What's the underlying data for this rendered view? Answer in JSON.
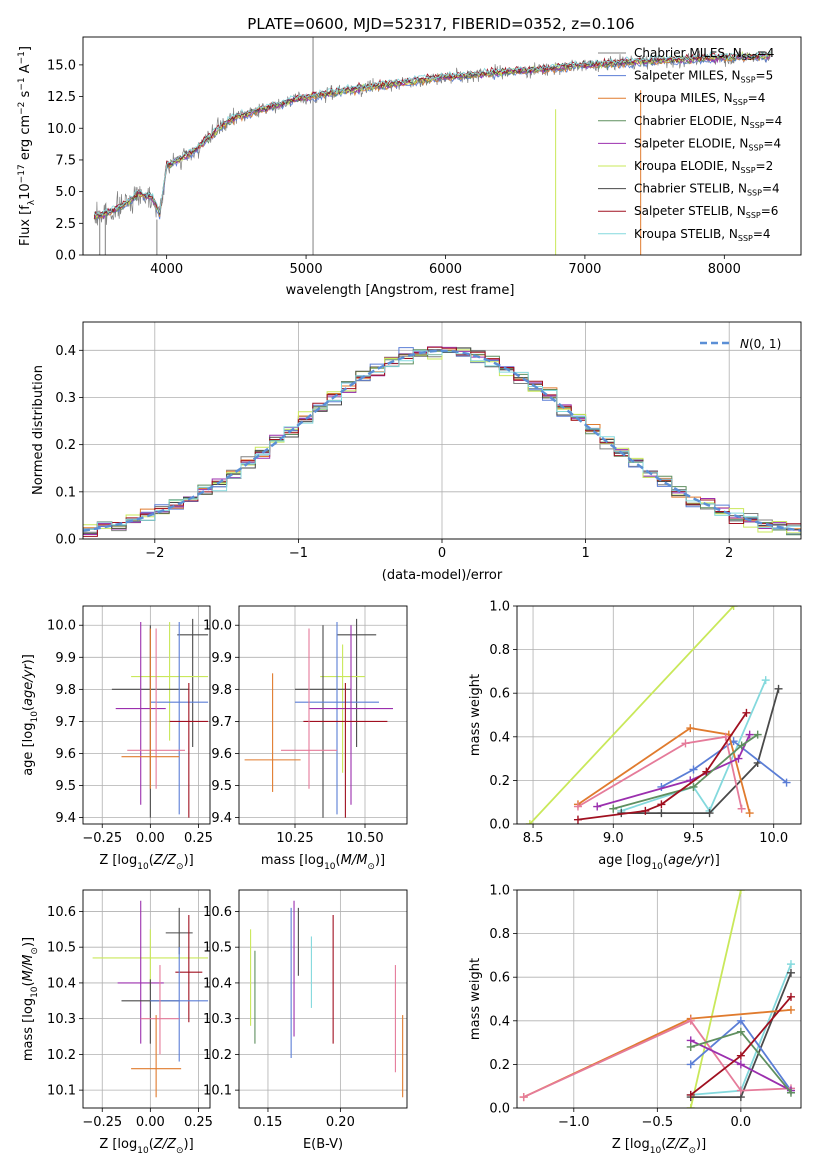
{
  "figure": {
    "title": "PLATE=0600, MJD=52317, FIBERID=0352, z=0.106"
  },
  "colors": [
    "#808080",
    "#5b7ed6",
    "#e07b2e",
    "#5f8f5f",
    "#9b2fae",
    "#c9e85a",
    "#4a4a4a",
    "#a01020",
    "#84d9dd"
  ],
  "chart_data": [
    {
      "id": "spectrum",
      "type": "line",
      "title": "PLATE=0600, MJD=52317, FIBERID=0352, z=0.106",
      "xlabel": "wavelength [Angstrom, rest frame]",
      "ylabel": "Flux [f_λ 10^-17 erg cm^-2 s^-1 A^-1]",
      "xlim": [
        3400,
        8550
      ],
      "ylim": [
        0,
        17.2
      ],
      "xticks": [
        4000,
        5000,
        6000,
        7000,
        8000
      ],
      "yticks": [
        0.0,
        2.5,
        5.0,
        7.5,
        10.0,
        12.5,
        15.0
      ],
      "grid": false,
      "legend": "top-right",
      "data_envelope": {
        "x": [
          3480,
          3600,
          3700,
          3800,
          3900,
          3950,
          4000,
          4100,
          4200,
          4300,
          4400,
          4500,
          4700,
          4900,
          5100,
          5300,
          5500,
          5700,
          5900,
          6100,
          6300,
          6500,
          6700,
          6900,
          7100,
          7300,
          7500,
          7700,
          7900,
          8100,
          8300
        ],
        "y": [
          3.0,
          3.4,
          4.0,
          4.8,
          4.5,
          3.2,
          7.0,
          7.6,
          8.2,
          9.2,
          10.2,
          10.9,
          11.5,
          12.2,
          12.6,
          13.0,
          13.3,
          13.6,
          13.9,
          14.1,
          14.3,
          14.5,
          14.6,
          14.9,
          15.0,
          15.2,
          15.3,
          15.4,
          15.5,
          15.6,
          15.7
        ]
      },
      "series": [
        {
          "name": "Chabrier MILES, N_SSP=4",
          "color": "#808080"
        },
        {
          "name": "Salpeter MILES, N_SSP=5",
          "color": "#5b7ed6"
        },
        {
          "name": "Kroupa MILES, N_SSP=4",
          "color": "#e07b2e"
        },
        {
          "name": "Chabrier ELODIE, N_SSP=4",
          "color": "#5f8f5f"
        },
        {
          "name": "Salpeter ELODIE, N_SSP=4",
          "color": "#9b2fae"
        },
        {
          "name": "Kroupa ELODIE, N_SSP=2",
          "color": "#c9e85a"
        },
        {
          "name": "Chabrier STELIB, N_SSP=4",
          "color": "#4a4a4a"
        },
        {
          "name": "Salpeter STELIB, N_SSP=6",
          "color": "#a01020"
        },
        {
          "name": "Kroupa STELIB, N_SSP=4",
          "color": "#84d9dd"
        }
      ]
    },
    {
      "id": "residuals",
      "type": "line",
      "xlabel": "(data-model)/error",
      "ylabel": "Normed distribution",
      "xlim": [
        -2.5,
        2.5
      ],
      "ylim": [
        0,
        0.46
      ],
      "xticks": [
        -2,
        -1,
        0,
        1,
        2
      ],
      "yticks": [
        0.0,
        0.1,
        0.2,
        0.3,
        0.4
      ],
      "grid": true,
      "legend": "top-right",
      "reference": {
        "name": "N(0,1)",
        "color": "#5b8fd6"
      }
    },
    {
      "id": "age_vs_Z",
      "type": "scatter",
      "xlabel": "Z [log10(Z/Z☉)]",
      "ylabel": "age [log10(age/yr)]",
      "xlim": [
        -0.35,
        0.31
      ],
      "ylim": [
        9.38,
        10.06
      ],
      "xticks": [
        -0.25,
        0.0,
        0.25
      ],
      "xtick_labels": [
        "−0.25",
        "0.00",
        "0.25"
      ],
      "yticks": [
        9.4,
        9.5,
        9.6,
        9.7,
        9.8,
        9.9,
        10.0
      ],
      "grid": true,
      "points": [
        {
          "x": 0.22,
          "y": 9.97,
          "xerr": 0.08,
          "yerr_lo": 0.35,
          "yerr_hi": 0.05,
          "color": "#4a4a4a"
        },
        {
          "x": 0.1,
          "y": 9.84,
          "xerr": 0.2,
          "yerr_lo": 0.2,
          "yerr_hi": 0.17,
          "color": "#c9e85a"
        },
        {
          "x": 0.0,
          "y": 9.8,
          "xerr": 0.2,
          "yerr_lo": 0.4,
          "yerr_hi": 0.2,
          "color": "#4a4a4a"
        },
        {
          "x": 0.15,
          "y": 9.76,
          "xerr": 0.15,
          "yerr_lo": 0.35,
          "yerr_hi": 0.25,
          "color": "#5b7ed6"
        },
        {
          "x": -0.05,
          "y": 9.74,
          "xerr": 0.13,
          "yerr_lo": 0.3,
          "yerr_hi": 0.27,
          "color": "#9b2fae"
        },
        {
          "x": 0.2,
          "y": 9.7,
          "xerr": 0.1,
          "yerr_lo": 0.3,
          "yerr_hi": 0.12,
          "color": "#a01020"
        },
        {
          "x": 0.03,
          "y": 9.61,
          "xerr": 0.15,
          "yerr_lo": 0.12,
          "yerr_hi": 0.38,
          "color": "#e57b9a"
        },
        {
          "x": 0.0,
          "y": 9.59,
          "xerr": 0.15,
          "yerr_lo": 0.1,
          "yerr_hi": 0.4,
          "color": "#e07b2e"
        }
      ]
    },
    {
      "id": "age_vs_mass",
      "type": "scatter",
      "xlabel": "mass [log10(M/M☉)]",
      "xlim": [
        10.05,
        10.65
      ],
      "ylim": [
        9.38,
        10.06
      ],
      "xticks": [
        10.25,
        10.5
      ],
      "xtick_labels": [
        "10.25",
        "10.50"
      ],
      "yticks": [
        9.4,
        9.5,
        9.6,
        9.7,
        9.8,
        9.9,
        10.0
      ],
      "grid": true,
      "points": [
        {
          "x": 10.47,
          "y": 9.97,
          "xerr": 0.07,
          "yerr_lo": 0.35,
          "yerr_hi": 0.05,
          "color": "#4a4a4a"
        },
        {
          "x": 10.42,
          "y": 9.84,
          "xerr": 0.08,
          "yerr_lo": 0.3,
          "yerr_hi": 0.1,
          "color": "#c9e85a"
        },
        {
          "x": 10.35,
          "y": 9.8,
          "xerr": 0.1,
          "yerr_lo": 0.4,
          "yerr_hi": 0.2,
          "color": "#4a4a4a"
        },
        {
          "x": 10.4,
          "y": 9.76,
          "xerr": 0.15,
          "yerr_lo": 0.35,
          "yerr_hi": 0.25,
          "color": "#5b7ed6"
        },
        {
          "x": 10.45,
          "y": 9.74,
          "xerr": 0.15,
          "yerr_lo": 0.3,
          "yerr_hi": 0.26,
          "color": "#9b2fae"
        },
        {
          "x": 10.43,
          "y": 9.7,
          "xerr": 0.15,
          "yerr_lo": 0.3,
          "yerr_hi": 0.12,
          "color": "#a01020"
        },
        {
          "x": 10.3,
          "y": 9.61,
          "xerr": 0.1,
          "yerr_lo": 0.12,
          "yerr_hi": 0.38,
          "color": "#e57b9a"
        },
        {
          "x": 10.17,
          "y": 9.58,
          "xerr": 0.1,
          "yerr_lo": 0.1,
          "yerr_hi": 0.27,
          "color": "#e07b2e"
        }
      ]
    },
    {
      "id": "weight_vs_age",
      "type": "line",
      "xlabel": "age [log10(age/yr)]",
      "ylabel": "mass weight",
      "xlim": [
        8.4,
        10.17
      ],
      "ylim": [
        0,
        1.0
      ],
      "xticks": [
        8.5,
        9.0,
        9.5,
        10.0
      ],
      "yticks": [
        0.0,
        0.2,
        0.4,
        0.6,
        0.8,
        1.0
      ],
      "grid": true,
      "series": [
        {
          "color": "#c9e85a",
          "x": [
            8.48,
            9.75
          ],
          "y": [
            0.0,
            1.0
          ]
        },
        {
          "color": "#84d9dd",
          "x": [
            9.05,
            9.5,
            9.6,
            9.95
          ],
          "y": [
            0.06,
            0.17,
            0.06,
            0.66
          ]
        },
        {
          "color": "#4a4a4a",
          "x": [
            9.05,
            9.3,
            9.6,
            9.9,
            10.03
          ],
          "y": [
            0.05,
            0.05,
            0.05,
            0.28,
            0.62
          ]
        },
        {
          "color": "#5b7ed6",
          "x": [
            9.3,
            9.5,
            9.75,
            10.08
          ],
          "y": [
            0.17,
            0.25,
            0.38,
            0.19
          ]
        },
        {
          "color": "#e07b2e",
          "x": [
            8.78,
            9.48,
            9.72,
            9.85
          ],
          "y": [
            0.09,
            0.44,
            0.41,
            0.05
          ]
        },
        {
          "color": "#e57b9a",
          "x": [
            8.78,
            9.45,
            9.7,
            9.8
          ],
          "y": [
            0.08,
            0.37,
            0.4,
            0.07
          ]
        },
        {
          "color": "#9b2fae",
          "x": [
            8.9,
            9.48,
            9.78,
            9.85
          ],
          "y": [
            0.08,
            0.2,
            0.3,
            0.41
          ]
        },
        {
          "color": "#5f8f5f",
          "x": [
            9.0,
            9.5,
            9.8,
            9.9
          ],
          "y": [
            0.07,
            0.17,
            0.36,
            0.41
          ]
        },
        {
          "color": "#a01020",
          "x": [
            8.78,
            9.2,
            9.3,
            9.58,
            9.83
          ],
          "y": [
            0.02,
            0.06,
            0.09,
            0.24,
            0.51
          ]
        }
      ]
    },
    {
      "id": "mass_vs_Z",
      "type": "scatter",
      "xlabel": "Z [log10(Z/Z☉)]",
      "ylabel": "mass [log10(M/M☉)]",
      "xlim": [
        -0.35,
        0.31
      ],
      "ylim": [
        10.05,
        10.66
      ],
      "xticks": [
        -0.25,
        0.0,
        0.25
      ],
      "xtick_labels": [
        "−0.25",
        "0.00",
        "0.25"
      ],
      "yticks": [
        10.1,
        10.2,
        10.3,
        10.4,
        10.5,
        10.6
      ],
      "grid": true,
      "points": [
        {
          "x": 0.15,
          "y": 10.54,
          "xerr": 0.07,
          "yerr_lo": 0.06,
          "yerr_hi": 0.07,
          "color": "#4a4a4a"
        },
        {
          "x": 0.0,
          "y": 10.47,
          "xerr": 0.3,
          "yerr_lo": 0.09,
          "yerr_hi": 0.08,
          "color": "#c9e85a"
        },
        {
          "x": 0.2,
          "y": 10.43,
          "xerr": 0.07,
          "yerr_lo": 0.14,
          "yerr_hi": 0.16,
          "color": "#a01020"
        },
        {
          "x": -0.05,
          "y": 10.4,
          "xerr": 0.12,
          "yerr_lo": 0.17,
          "yerr_hi": 0.23,
          "color": "#9b2fae"
        },
        {
          "x": 0.0,
          "y": 10.35,
          "xerr": 0.15,
          "yerr_lo": 0.12,
          "yerr_hi": 0.06,
          "color": "#4a4a4a"
        },
        {
          "x": 0.15,
          "y": 10.35,
          "xerr": 0.15,
          "yerr_lo": 0.17,
          "yerr_hi": 0.15,
          "color": "#5b7ed6"
        },
        {
          "x": 0.05,
          "y": 10.3,
          "xerr": 0.1,
          "yerr_lo": 0.1,
          "yerr_hi": 0.15,
          "color": "#e57b9a"
        },
        {
          "x": 0.03,
          "y": 10.16,
          "xerr": 0.13,
          "yerr_lo": 0.08,
          "yerr_hi": 0.15,
          "color": "#e07b2e"
        }
      ]
    },
    {
      "id": "mass_vs_ebv",
      "type": "scatter",
      "xlabel": "E(B-V)",
      "xlim": [
        0.13,
        0.246
      ],
      "ylim": [
        10.05,
        10.66
      ],
      "xticks": [
        0.15,
        0.2
      ],
      "xtick_labels": [
        "0.15",
        "0.20"
      ],
      "yticks": [
        10.1,
        10.2,
        10.3,
        10.4,
        10.5,
        10.6
      ],
      "grid": true,
      "points": [
        {
          "x": 0.138,
          "y": 10.4,
          "yerr_lo": 0.12,
          "yerr_hi": 0.15,
          "color": "#c9e85a"
        },
        {
          "x": 0.141,
          "y": 10.36,
          "yerr_lo": 0.13,
          "yerr_hi": 0.13,
          "color": "#5f8f5f"
        },
        {
          "x": 0.166,
          "y": 10.4,
          "yerr_lo": 0.21,
          "yerr_hi": 0.21,
          "color": "#5b7ed6"
        },
        {
          "x": 0.168,
          "y": 10.44,
          "yerr_lo": 0.19,
          "yerr_hi": 0.19,
          "color": "#9b2fae"
        },
        {
          "x": 0.171,
          "y": 10.51,
          "yerr_lo": 0.09,
          "yerr_hi": 0.1,
          "color": "#4a4a4a"
        },
        {
          "x": 0.18,
          "y": 10.4,
          "yerr_lo": 0.07,
          "yerr_hi": 0.13,
          "color": "#84d9dd"
        },
        {
          "x": 0.195,
          "y": 10.41,
          "yerr_lo": 0.18,
          "yerr_hi": 0.18,
          "color": "#a01020"
        },
        {
          "x": 0.238,
          "y": 10.3,
          "yerr_lo": 0.15,
          "yerr_hi": 0.15,
          "color": "#e57b9a"
        },
        {
          "x": 0.243,
          "y": 10.2,
          "yerr_lo": 0.12,
          "yerr_hi": 0.11,
          "color": "#e07b2e"
        }
      ]
    },
    {
      "id": "weight_vs_Z",
      "type": "line",
      "xlabel": "Z [log10(Z/Z☉)]",
      "ylabel": "mass weight",
      "xlim": [
        -1.34,
        0.36
      ],
      "ylim": [
        0,
        1.0
      ],
      "xticks": [
        -1.0,
        -0.5,
        0.0
      ],
      "xtick_labels": [
        "−1.0",
        "−0.5",
        "0.0"
      ],
      "yticks": [
        0.0,
        0.2,
        0.4,
        0.6,
        0.8,
        1.0
      ],
      "grid": true,
      "series": [
        {
          "color": "#c9e85a",
          "x": [
            -0.3,
            0.0
          ],
          "y": [
            0.0,
            1.0
          ]
        },
        {
          "color": "#84d9dd",
          "x": [
            -0.3,
            0.0,
            0.3
          ],
          "y": [
            0.06,
            0.08,
            0.66
          ]
        },
        {
          "color": "#4a4a4a",
          "x": [
            -0.3,
            0.0,
            0.3
          ],
          "y": [
            0.05,
            0.05,
            0.62
          ]
        },
        {
          "color": "#5b7ed6",
          "x": [
            -0.3,
            0.0,
            0.3
          ],
          "y": [
            0.2,
            0.4,
            0.08
          ]
        },
        {
          "color": "#e07b2e",
          "x": [
            -1.3,
            -0.3,
            0.3
          ],
          "y": [
            0.05,
            0.41,
            0.45
          ]
        },
        {
          "color": "#e57b9a",
          "x": [
            -1.3,
            -0.3,
            0.0,
            0.3
          ],
          "y": [
            0.05,
            0.4,
            0.08,
            0.09
          ]
        },
        {
          "color": "#9b2fae",
          "x": [
            -0.3,
            0.0,
            0.3
          ],
          "y": [
            0.31,
            0.2,
            0.08
          ]
        },
        {
          "color": "#5f8f5f",
          "x": [
            -0.3,
            0.0,
            0.3
          ],
          "y": [
            0.28,
            0.35,
            0.07
          ]
        },
        {
          "color": "#a01020",
          "x": [
            -0.3,
            0.0,
            0.3
          ],
          "y": [
            0.06,
            0.24,
            0.51
          ]
        }
      ]
    }
  ]
}
